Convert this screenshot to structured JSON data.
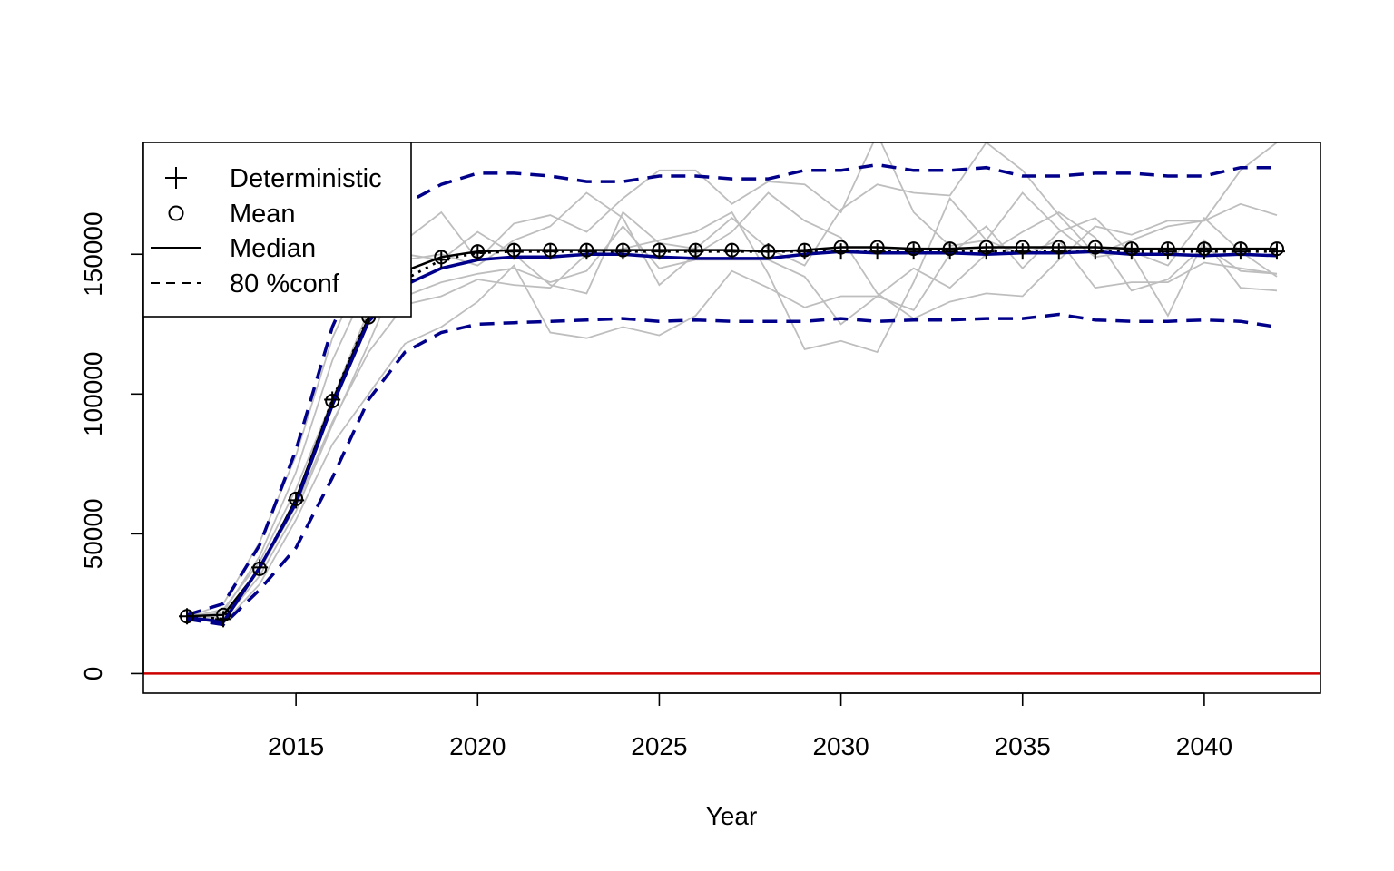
{
  "chart_data": {
    "type": "line",
    "xlabel": "Year",
    "ylabel": "",
    "title": "",
    "xlim": [
      2010.8,
      2043.2
    ],
    "ylim": [
      -7000,
      190000
    ],
    "x_ticks": [
      2015,
      2020,
      2025,
      2030,
      2035,
      2040
    ],
    "x_tick_labels": [
      "2015",
      "2020",
      "2025",
      "2030",
      "2035",
      "2040"
    ],
    "y_ticks": [
      0,
      50000,
      100000,
      150000
    ],
    "y_tick_labels": [
      "0",
      "50000",
      "100000",
      "150000"
    ],
    "grid": false,
    "legend_position": "top-left",
    "legend": [
      {
        "symbol": "plus",
        "label": "Deterministic"
      },
      {
        "symbol": "circle",
        "label": "Mean"
      },
      {
        "symbol": "solid-line",
        "label": "Median"
      },
      {
        "symbol": "dashed-line",
        "label": "80 %conf"
      }
    ],
    "colors": {
      "median": "#00008B",
      "conf": "#00008B",
      "deterministic": "#000000",
      "mean": "#000000",
      "trajectory": "#BEBEBE",
      "zero_line": "#CD0000"
    },
    "x": [
      2012,
      2013,
      2014,
      2015,
      2016,
      2017,
      2018,
      2019,
      2020,
      2021,
      2022,
      2023,
      2024,
      2025,
      2026,
      2027,
      2028,
      2029,
      2030,
      2031,
      2032,
      2033,
      2034,
      2035,
      2036,
      2037,
      2038,
      2039,
      2040,
      2041,
      2042
    ],
    "deterministic": [
      20500,
      19500,
      38000,
      62000,
      98000,
      128000,
      141000,
      148000,
      150500,
      151000,
      151000,
      151000,
      151000,
      151000,
      151000,
      151000,
      151000,
      151000,
      151000,
      151000,
      151000,
      151000,
      151000,
      151000,
      151000,
      151000,
      151000,
      151000,
      151000,
      151000,
      151000
    ],
    "mean": [
      20500,
      21000,
      37500,
      62500,
      97500,
      127500,
      144000,
      149000,
      151000,
      151500,
      151500,
      151500,
      151500,
      151500,
      151500,
      151500,
      151000,
      151500,
      152500,
      152500,
      152000,
      152000,
      152500,
      152500,
      152500,
      152500,
      152000,
      152000,
      152000,
      152000,
      152000
    ],
    "median": [
      20000,
      18500,
      38000,
      61000,
      96000,
      126000,
      139000,
      145000,
      148000,
      149000,
      149000,
      150000,
      150000,
      149000,
      148500,
      148500,
      148500,
      150000,
      151000,
      150500,
      150500,
      150500,
      150000,
      150500,
      150500,
      151000,
      150000,
      150000,
      149500,
      150000,
      149500
    ],
    "conf_upper": [
      21000,
      25000,
      46000,
      80000,
      124000,
      153000,
      168000,
      175000,
      179000,
      179000,
      178000,
      176000,
      176000,
      178000,
      178000,
      177000,
      177000,
      180000,
      180000,
      182000,
      180000,
      180000,
      181000,
      178000,
      178000,
      179000,
      179000,
      178000,
      178000,
      181000,
      181000
    ],
    "conf_lower": [
      19500,
      17500,
      30000,
      45000,
      70000,
      98000,
      115000,
      122000,
      125000,
      125500,
      126000,
      126500,
      127000,
      126000,
      126500,
      126000,
      126000,
      126000,
      127000,
      126000,
      126500,
      126500,
      127000,
      127000,
      128500,
      126500,
      126000,
      126000,
      126500,
      126000,
      124000
    ],
    "trajectories": [
      [
        20000,
        25000,
        47000,
        78000,
        120000,
        148000,
        150000,
        148000,
        158000,
        150000,
        139000,
        136000,
        165000,
        154000,
        152000,
        163000,
        152000,
        146000,
        166000,
        175000,
        172000,
        171000,
        190000,
        180000,
        164000,
        150000,
        155000,
        160000,
        162000,
        180000,
        190000
      ],
      [
        20000,
        22000,
        42000,
        72000,
        112000,
        140000,
        155000,
        165000,
        148000,
        161000,
        164000,
        158000,
        170000,
        180000,
        180000,
        168000,
        176000,
        175000,
        165000,
        193000,
        165000,
        153000,
        155000,
        172000,
        159000,
        149000,
        151000,
        146000,
        163000,
        151000,
        142000
      ],
      [
        20000,
        19000,
        35000,
        58000,
        89000,
        118000,
        148000,
        150000,
        146000,
        155000,
        160000,
        172000,
        163000,
        139000,
        150000,
        158000,
        172000,
        162000,
        156000,
        136000,
        127000,
        133000,
        136000,
        135000,
        148000,
        160000,
        157000,
        162000,
        162000,
        168000,
        164000
      ],
      [
        20000,
        18000,
        32000,
        55000,
        82000,
        100000,
        118000,
        124000,
        133000,
        146000,
        122000,
        120000,
        124000,
        121000,
        128000,
        144000,
        138000,
        131000,
        135000,
        135000,
        145000,
        138000,
        150000,
        158000,
        165000,
        156000,
        137000,
        141000,
        153000,
        144000,
        143000
      ],
      [
        20000,
        23000,
        40000,
        66000,
        98000,
        130000,
        135000,
        140000,
        143000,
        145000,
        140000,
        144000,
        160000,
        145000,
        148000,
        148000,
        148000,
        142000,
        125000,
        135000,
        130000,
        150000,
        160000,
        145000,
        158000,
        163000,
        150000,
        128000,
        155000,
        138000,
        137000
      ],
      [
        20000,
        20000,
        37000,
        60000,
        90000,
        115000,
        132000,
        135000,
        141000,
        139000,
        138000,
        150000,
        152000,
        155000,
        158000,
        165000,
        143000,
        116000,
        119000,
        115000,
        140000,
        170000,
        155000,
        150000,
        155000,
        138000,
        140000,
        140000,
        147000,
        145000,
        143000
      ]
    ]
  }
}
